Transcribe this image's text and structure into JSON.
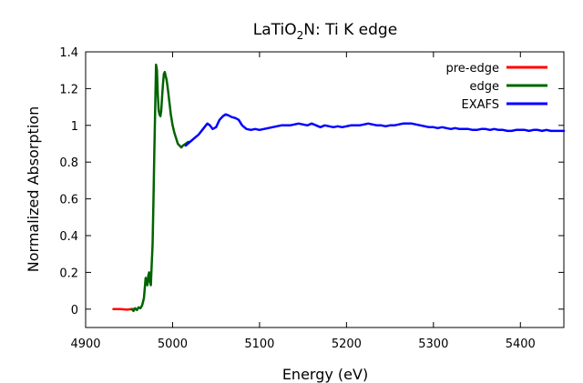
{
  "chart_data": {
    "type": "line",
    "title": {
      "prefix": "LaTiO",
      "subscript": "2",
      "suffix": "N: Ti K edge"
    },
    "xlabel": "Energy (eV)",
    "ylabel": "Normalized Absorption",
    "xlim": [
      4900,
      5450
    ],
    "ylim": [
      -0.1,
      1.4
    ],
    "xticks": [
      4900,
      5000,
      5100,
      5200,
      5300,
      5400
    ],
    "yticks": [
      0,
      0.2,
      0.4,
      0.6,
      0.8,
      1,
      1.2,
      1.4
    ],
    "ytick_labels": [
      "0",
      "0.2",
      "0.4",
      "0.6",
      "0.8",
      "1",
      "1.2",
      "1.4"
    ],
    "grid": false,
    "legend_position": "top-right",
    "series": [
      {
        "name": "pre-edge",
        "color": "#ff0000",
        "x": [
          4932,
          4940,
          4948,
          4953,
          4956
        ],
        "y": [
          0.0,
          0.0,
          -0.003,
          0.0,
          0.0
        ]
      },
      {
        "name": "edge",
        "color": "#006400",
        "x": [
          4953,
          4955,
          4957,
          4959,
          4961,
          4963,
          4965,
          4967,
          4969,
          4971,
          4972,
          4973,
          4974,
          4975,
          4976,
          4977,
          4978,
          4979,
          4980,
          4981,
          4982,
          4983,
          4984,
          4985,
          4986,
          4987,
          4988,
          4989,
          4990,
          4991,
          4992,
          4993,
          4994,
          4995,
          4996,
          4997,
          4998,
          4999,
          5000,
          5002,
          5004,
          5006,
          5008,
          5010,
          5012,
          5015,
          5018
        ],
        "y": [
          0.0,
          -0.01,
          0.005,
          -0.005,
          0.01,
          0.005,
          0.02,
          0.06,
          0.17,
          0.13,
          0.18,
          0.2,
          0.15,
          0.13,
          0.24,
          0.35,
          0.6,
          0.85,
          1.1,
          1.33,
          1.3,
          1.17,
          1.08,
          1.06,
          1.05,
          1.08,
          1.16,
          1.23,
          1.28,
          1.29,
          1.27,
          1.25,
          1.22,
          1.18,
          1.14,
          1.1,
          1.06,
          1.03,
          1.0,
          0.96,
          0.93,
          0.9,
          0.89,
          0.88,
          0.89,
          0.9,
          0.91
        ]
      },
      {
        "name": "EXAFS",
        "color": "#0000ff",
        "x": [
          5015,
          5020,
          5025,
          5030,
          5035,
          5040,
          5043,
          5046,
          5050,
          5054,
          5058,
          5061,
          5064,
          5068,
          5072,
          5076,
          5080,
          5085,
          5090,
          5095,
          5100,
          5105,
          5110,
          5115,
          5120,
          5125,
          5130,
          5135,
          5140,
          5145,
          5150,
          5155,
          5160,
          5165,
          5170,
          5175,
          5180,
          5185,
          5190,
          5195,
          5200,
          5205,
          5210,
          5215,
          5220,
          5225,
          5230,
          5235,
          5240,
          5245,
          5250,
          5255,
          5260,
          5265,
          5270,
          5275,
          5280,
          5285,
          5290,
          5295,
          5300,
          5305,
          5310,
          5315,
          5320,
          5325,
          5330,
          5335,
          5340,
          5345,
          5350,
          5355,
          5360,
          5365,
          5370,
          5375,
          5380,
          5385,
          5390,
          5395,
          5400,
          5405,
          5410,
          5415,
          5420,
          5425,
          5430,
          5435,
          5440,
          5445,
          5450
        ],
        "y": [
          0.89,
          0.91,
          0.93,
          0.95,
          0.98,
          1.01,
          1.0,
          0.98,
          0.99,
          1.03,
          1.05,
          1.06,
          1.055,
          1.045,
          1.04,
          1.03,
          1.0,
          0.98,
          0.975,
          0.98,
          0.975,
          0.98,
          0.985,
          0.99,
          0.995,
          1.0,
          1.0,
          1.0,
          1.005,
          1.01,
          1.005,
          1.0,
          1.01,
          1.0,
          0.99,
          1.0,
          0.995,
          0.99,
          0.995,
          0.99,
          0.995,
          1.0,
          1.0,
          1.0,
          1.005,
          1.01,
          1.005,
          1.0,
          1.0,
          0.995,
          1.0,
          1.0,
          1.005,
          1.01,
          1.01,
          1.01,
          1.005,
          1.0,
          0.995,
          0.99,
          0.99,
          0.985,
          0.99,
          0.985,
          0.98,
          0.985,
          0.98,
          0.98,
          0.98,
          0.975,
          0.975,
          0.98,
          0.98,
          0.975,
          0.98,
          0.975,
          0.975,
          0.97,
          0.97,
          0.975,
          0.975,
          0.975,
          0.97,
          0.975,
          0.975,
          0.97,
          0.975,
          0.97,
          0.97,
          0.97,
          0.97
        ]
      }
    ]
  }
}
